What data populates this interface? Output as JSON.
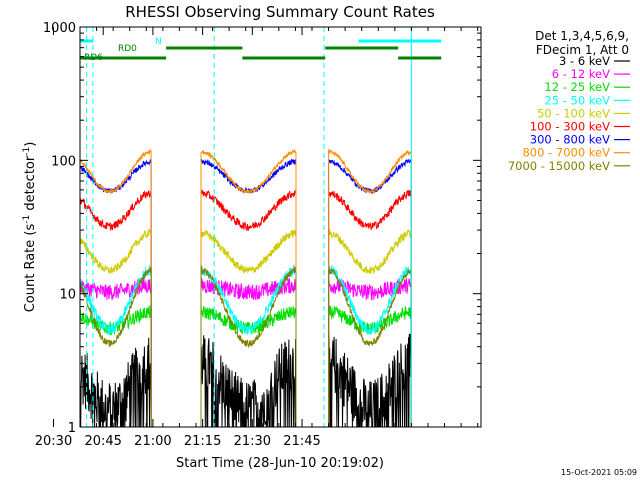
{
  "chart_data": {
    "type": "line",
    "title": "RHESSI Observing Summary Count Rates",
    "xlabel": "Start Time (28-Jun-10 20:19:02)",
    "ylabel_main": "Count Rate (s",
    "ylabel_sup": "-1",
    "ylabel_mid": " detector",
    "ylabel_end": ")",
    "yscale": "log",
    "ylim": [
      1,
      1000
    ],
    "xlim_min": [
      19.0,
      140.0
    ],
    "x_ticks_min": [
      11,
      26,
      41,
      56,
      71,
      86
    ],
    "x_tick_labels": [
      "20:30",
      "20:45",
      "21:00",
      "21:15",
      "21:30",
      "21:45"
    ],
    "y_ticks": [
      1,
      10,
      100,
      1000
    ],
    "y_tick_labels": [
      "1",
      "10",
      "100",
      "1000"
    ],
    "legend_header": [
      "Det 1,3,4,5,6,9,",
      "FDecim 1, Att 0"
    ],
    "legend": [
      {
        "label": "3 - 6 keV",
        "color": "#000000"
      },
      {
        "label": "6 - 12 keV",
        "color": "#ff00ff"
      },
      {
        "label": "12 - 25 keV",
        "color": "#00dd00"
      },
      {
        "label": "25 - 50 keV",
        "color": "#00ffff"
      },
      {
        "label": "50 - 100 keV",
        "color": "#cccc00"
      },
      {
        "label": "100 - 300 keV",
        "color": "#ff0000"
      },
      {
        "label": "300 - 800 keV",
        "color": "#0000ff"
      },
      {
        "label": "800 - 7000 keV",
        "color": "#ff8c00"
      },
      {
        "label": "7000 - 15000 keV",
        "color": "#808000"
      }
    ],
    "observing_intervals_min": [
      [
        15.5,
        40.5
      ],
      [
        55.5,
        84.2
      ],
      [
        94.0,
        119.0
      ]
    ],
    "attenuator_lines_min": [
      21.0,
      22.9,
      59.5,
      92.6,
      119.0
    ],
    "flags": [
      {
        "label": "N",
        "color": "#00ffff",
        "intervals_min": [
          [
            0.0,
            23.0
          ],
          [
            103.0,
            128.0
          ]
        ]
      },
      {
        "label": "RD0",
        "color": "#008000",
        "intervals_min": [
          [
            45.0,
            68.0
          ],
          [
            93.0,
            115.0
          ]
        ]
      },
      {
        "label": "RD6",
        "color": "#008000",
        "intervals_min": [
          [
            0.0,
            8.0
          ],
          [
            10.0,
            45.0
          ],
          [
            68.0,
            93.0
          ],
          [
            115.0,
            128.0
          ]
        ]
      }
    ],
    "footer_date": "15-Oct-2021 05:09"
  }
}
